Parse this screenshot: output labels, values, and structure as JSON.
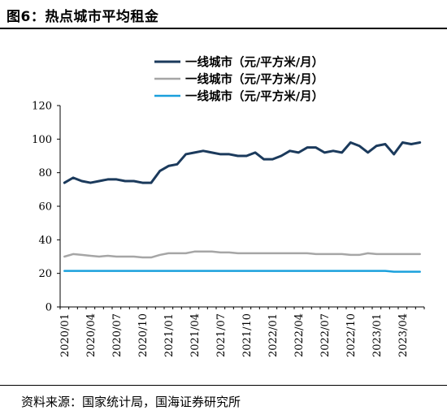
{
  "figure": {
    "title": "图6：热点城市平均租金",
    "source": "资料来源：国家统计局，国海证券研究所"
  },
  "chart_data": {
    "type": "line",
    "title": "图6：热点城市平均租金",
    "xlabel": "",
    "ylabel": "",
    "ylim": [
      0,
      120
    ],
    "yticks": [
      0,
      20,
      40,
      60,
      80,
      100,
      120
    ],
    "grid": false,
    "legend_position": "top",
    "x": [
      "2020/01",
      "2020/02",
      "2020/03",
      "2020/04",
      "2020/05",
      "2020/06",
      "2020/07",
      "2020/08",
      "2020/09",
      "2020/10",
      "2020/11",
      "2020/12",
      "2021/01",
      "2021/02",
      "2021/03",
      "2021/04",
      "2021/05",
      "2021/06",
      "2021/07",
      "2021/08",
      "2021/09",
      "2021/10",
      "2021/11",
      "2021/12",
      "2022/01",
      "2022/02",
      "2022/03",
      "2022/04",
      "2022/05",
      "2022/06",
      "2022/07",
      "2022/08",
      "2022/09",
      "2022/10",
      "2022/11",
      "2022/12",
      "2023/01",
      "2023/02",
      "2023/03",
      "2023/04",
      "2023/05",
      "2023/06"
    ],
    "xtick_labels": [
      "2020/01",
      "2020/04",
      "2020/07",
      "2020/10",
      "2021/01",
      "2021/04",
      "2021/07",
      "2021/10",
      "2022/01",
      "2022/04",
      "2022/07",
      "2022/10",
      "2023/01",
      "2023/04"
    ],
    "series": [
      {
        "name": "一线城市（元/平方米/月）",
        "color": "#1b3a5c",
        "values": [
          74,
          77,
          75,
          74,
          75,
          76,
          76,
          75,
          75,
          74,
          74,
          81,
          84,
          85,
          91,
          92,
          93,
          92,
          91,
          91,
          90,
          90,
          92,
          88,
          88,
          90,
          93,
          92,
          95,
          95,
          92,
          93,
          92,
          98,
          96,
          92,
          96,
          97,
          91,
          98,
          97,
          98
        ]
      },
      {
        "name": "一线城市（元/平方米/月）",
        "color": "#a6a6a6",
        "values": [
          30,
          31.5,
          31,
          30.5,
          30,
          30.5,
          30,
          30,
          30,
          29.5,
          29.5,
          31,
          32,
          32,
          32,
          33,
          33,
          33,
          32.5,
          32.5,
          32,
          32,
          32,
          32,
          32,
          32,
          32,
          32,
          32,
          31.5,
          31.5,
          31.5,
          31.5,
          31,
          31,
          32,
          31.5,
          31.5,
          31.5,
          31.5,
          31.5,
          31.5
        ]
      },
      {
        "name": "一线城市（元/平方米/月）",
        "color": "#1aa0dc",
        "values": [
          21.5,
          21.5,
          21.5,
          21.5,
          21.5,
          21.5,
          21.5,
          21.5,
          21.5,
          21.5,
          21.5,
          21.5,
          21.5,
          21.5,
          21.5,
          21.5,
          21.5,
          21.5,
          21.5,
          21.5,
          21.5,
          21.5,
          21.5,
          21.5,
          21.5,
          21.5,
          21.5,
          21.5,
          21.5,
          21.5,
          21.5,
          21.5,
          21.5,
          21.5,
          21.5,
          21.5,
          21.5,
          21.5,
          21,
          21,
          21,
          21
        ]
      }
    ]
  }
}
